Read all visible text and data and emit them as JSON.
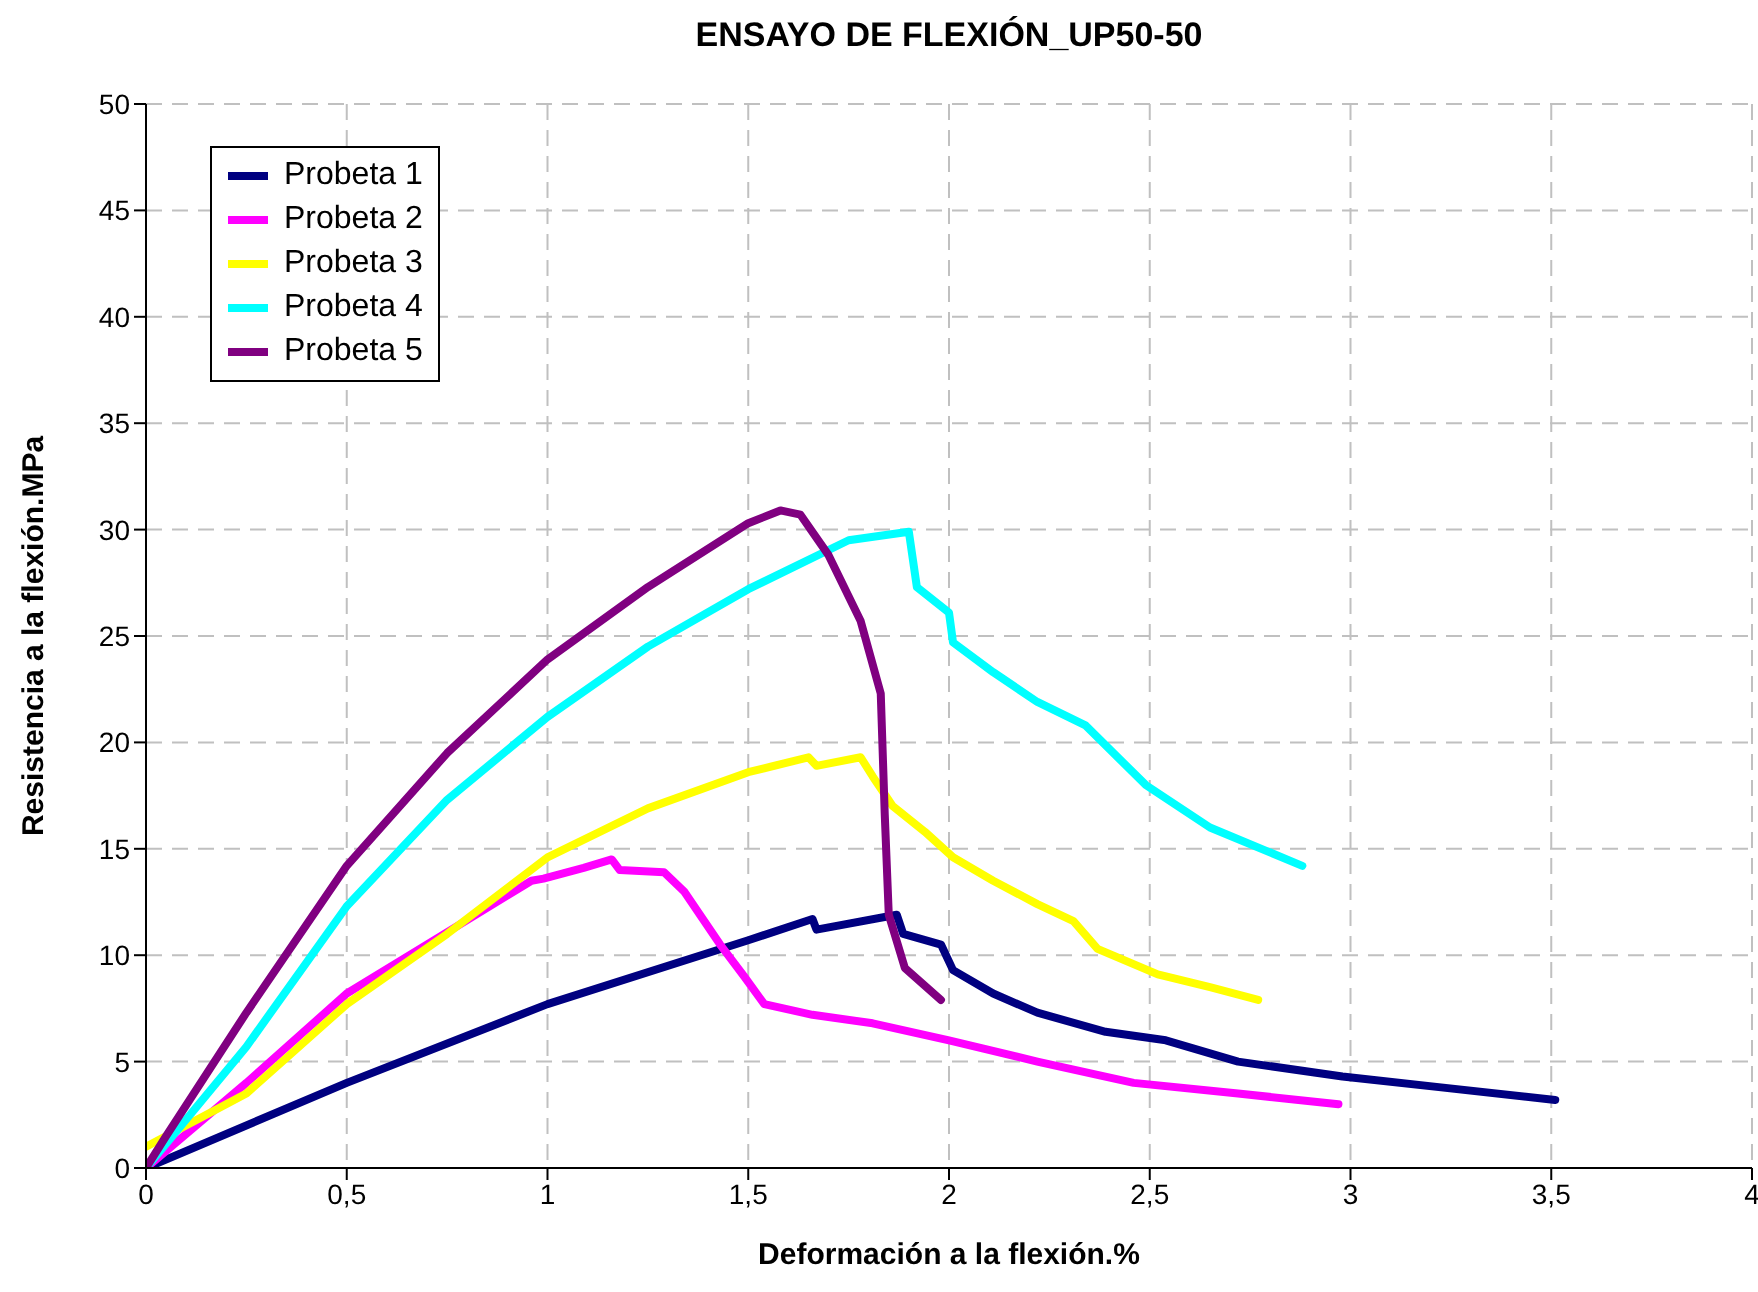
{
  "chart_data": {
    "type": "line",
    "title": "ENSAYO DE FLEXIÓN_UP50-50",
    "xlabel": "Deformación a la flexión.%",
    "ylabel": "Resistencia a la flexión.MPa",
    "xlim": [
      0,
      4
    ],
    "xticks": [
      0,
      {
        "value": 0.5,
        "label": "0,5"
      },
      1,
      {
        "value": 1.5,
        "label": "1,5"
      },
      2,
      {
        "value": 2.5,
        "label": "2,5"
      },
      3,
      {
        "value": 3.5,
        "label": "3,5"
      },
      4
    ],
    "ylim": [
      0,
      50
    ],
    "yticks": [
      0,
      5,
      10,
      15,
      20,
      25,
      30,
      35,
      40,
      45,
      50
    ],
    "grid": true,
    "legend": "top left",
    "series": [
      {
        "name": "Probeta 1",
        "color": "#000080",
        "x": [
          0,
          0.5,
          1.0,
          1.5,
          1.66,
          1.67,
          1.87,
          1.886,
          1.98,
          2.01,
          2.11,
          2.22,
          2.39,
          2.54,
          2.72,
          2.98,
          3.22,
          3.51
        ],
        "values": [
          0,
          4,
          7.7,
          10.7,
          11.7,
          11.2,
          11.9,
          11.0,
          10.5,
          9.3,
          8.2,
          7.3,
          6.4,
          6.0,
          5.0,
          4.3,
          3.8,
          3.2
        ]
      },
      {
        "name": "Probeta 2",
        "color": "#ff00ff",
        "x": [
          0,
          0.25,
          0.5,
          0.96,
          0.99,
          1.09,
          1.16,
          1.18,
          1.29,
          1.34,
          1.43,
          1.49,
          1.54,
          1.66,
          1.81,
          2.0,
          2.22,
          2.46,
          2.72,
          2.97
        ],
        "values": [
          0,
          4.0,
          8.2,
          13.5,
          13.6,
          14.1,
          14.5,
          14.0,
          13.9,
          13.0,
          10.5,
          9.0,
          7.7,
          7.2,
          6.8,
          6.0,
          5.0,
          4.0,
          3.5,
          3.0
        ]
      },
      {
        "name": "Probeta 3",
        "color": "#ffff00",
        "x": [
          0,
          0.25,
          0.5,
          0.75,
          1.0,
          1.25,
          1.5,
          1.65,
          1.67,
          1.78,
          1.81,
          1.86,
          1.94,
          2.01,
          2.11,
          2.22,
          2.31,
          2.37,
          2.52,
          2.65,
          2.77
        ],
        "values": [
          1.0,
          3.5,
          7.7,
          11.0,
          14.6,
          16.9,
          18.6,
          19.3,
          18.9,
          19.3,
          18.4,
          17.0,
          15.8,
          14.6,
          13.5,
          12.4,
          11.6,
          10.3,
          9.1,
          8.5,
          7.9
        ]
      },
      {
        "name": "Probeta 4",
        "color": "#00ffff",
        "x": [
          0,
          0.25,
          0.5,
          0.75,
          1.0,
          1.25,
          1.5,
          1.75,
          1.9,
          1.92,
          2.0,
          2.01,
          2.11,
          2.22,
          2.34,
          2.49,
          2.65,
          2.88
        ],
        "values": [
          0,
          5.7,
          12.3,
          17.3,
          21.2,
          24.5,
          27.2,
          29.5,
          29.9,
          27.3,
          26.1,
          24.7,
          23.3,
          21.9,
          20.8,
          18.0,
          16.0,
          14.2
        ]
      },
      {
        "name": "Probeta 5",
        "color": "#800080",
        "x": [
          0,
          0.05,
          0.25,
          0.5,
          0.75,
          1.0,
          1.25,
          1.5,
          1.58,
          1.63,
          1.7,
          1.78,
          1.83,
          1.84,
          1.85,
          1.89,
          1.98
        ],
        "values": [
          0,
          1.5,
          7.3,
          14.2,
          19.5,
          23.9,
          27.3,
          30.3,
          30.9,
          30.7,
          28.8,
          25.7,
          22.3,
          16.6,
          11.9,
          9.4,
          7.9
        ]
      }
    ]
  }
}
